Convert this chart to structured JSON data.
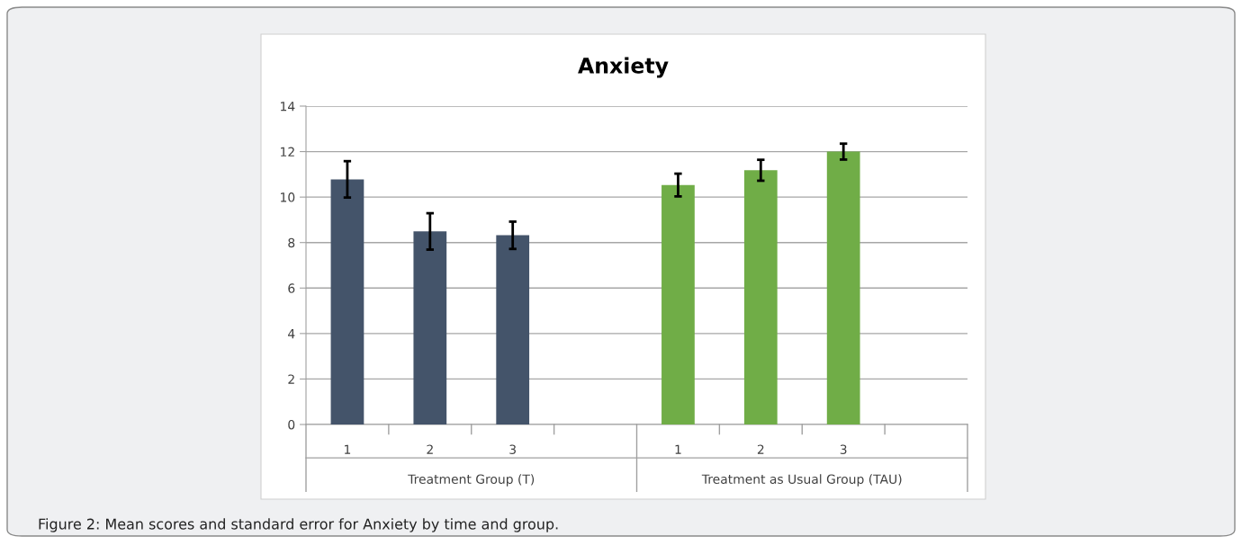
{
  "chart_data": {
    "type": "bar",
    "title": "Anxiety",
    "categories": [
      "1",
      "2",
      "3",
      null,
      "1",
      "2",
      "3",
      null
    ],
    "values": [
      10.78,
      8.49,
      8.32,
      null,
      10.53,
      11.18,
      12.0,
      null
    ],
    "errors": [
      0.8,
      0.8,
      0.6,
      null,
      0.5,
      0.46,
      0.35,
      null
    ],
    "colors": [
      "#44546a",
      "#44546a",
      "#44546a",
      "#44546a",
      "#70ad47",
      "#70ad47",
      "#70ad47",
      "#70ad47"
    ],
    "ylim": [
      0,
      14
    ],
    "yticks": [
      0,
      2,
      4,
      6,
      8,
      10,
      12,
      14
    ],
    "grid": "y",
    "annotations": [
      "Treatment Group (T)",
      "Treatment as Usual Group (TAU)",
      "Figure 2: Mean scores and standard error for Anxiety by time and group."
    ]
  }
}
